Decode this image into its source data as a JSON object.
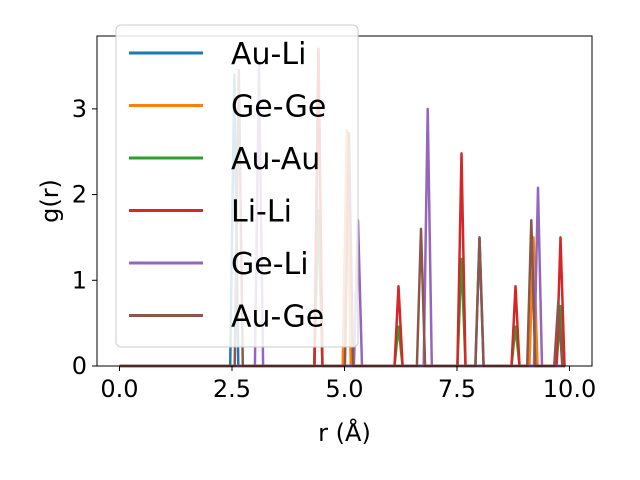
{
  "chart_data": {
    "type": "line",
    "title": "",
    "xlabel": "r (Å)",
    "ylabel": "g(r)",
    "xlim": [
      -0.5,
      10.5
    ],
    "ylim": [
      0,
      3.85
    ],
    "xticks": [
      0.0,
      2.5,
      5.0,
      7.5,
      10.0
    ],
    "xtick_labels": [
      "0.0",
      "2.5",
      "5.0",
      "7.5",
      "10.0"
    ],
    "yticks": [
      0,
      1,
      2,
      3
    ],
    "ytick_labels": [
      "0",
      "1",
      "2",
      "3"
    ],
    "grid": false,
    "legend_position": "upper-left",
    "peak_half_width": 0.09,
    "series": [
      {
        "name": "Au-Li",
        "color": "#1f77b4",
        "peaks": [
          [
            2.55,
            3.4
          ],
          [
            4.42,
            3.7
          ],
          [
            8.0,
            1.5
          ]
        ]
      },
      {
        "name": "Ge-Ge",
        "color": "#ff7f0e",
        "peaks": [
          [
            4.42,
            3.6
          ],
          [
            5.05,
            2.75
          ],
          [
            9.2,
            1.5
          ]
        ]
      },
      {
        "name": "Au-Au",
        "color": "#2ca02c",
        "peaks": [
          [
            4.42,
            1.82
          ],
          [
            6.2,
            0.46
          ],
          [
            7.6,
            1.25
          ],
          [
            8.8,
            0.46
          ],
          [
            9.8,
            0.7
          ]
        ]
      },
      {
        "name": "Li-Li",
        "color": "#d62728",
        "peaks": [
          [
            4.42,
            3.7
          ],
          [
            6.2,
            0.93
          ],
          [
            7.6,
            2.48
          ],
          [
            8.8,
            0.93
          ],
          [
            9.8,
            1.5
          ]
        ]
      },
      {
        "name": "Ge-Li",
        "color": "#9467bd",
        "peaks": [
          [
            3.1,
            3.5
          ],
          [
            5.3,
            1.7
          ],
          [
            6.85,
            3.0
          ],
          [
            9.3,
            2.08
          ]
        ]
      },
      {
        "name": "Au-Ge",
        "color": "#8c564b",
        "peaks": [
          [
            2.65,
            3.45
          ],
          [
            5.1,
            2.72
          ],
          [
            6.7,
            1.6
          ],
          [
            8.0,
            1.5
          ],
          [
            9.15,
            1.7
          ],
          [
            9.75,
            0.75
          ]
        ]
      }
    ]
  }
}
